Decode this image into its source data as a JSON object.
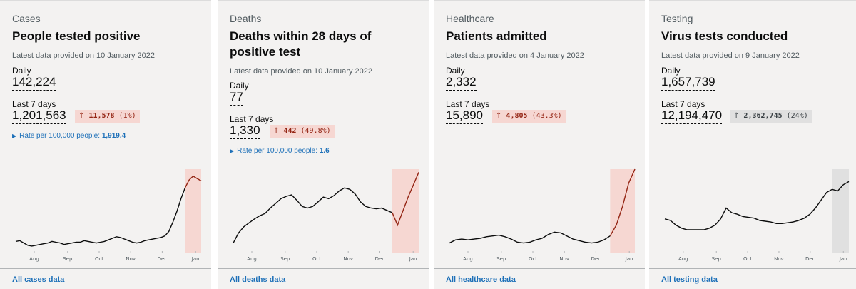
{
  "cards": [
    {
      "category": "Cases",
      "title": "People tested positive",
      "latest": "Latest data provided on 10 January 2022",
      "daily_label": "Daily",
      "daily_value": "142,224",
      "week_label": "Last 7 days",
      "week_value": "1,201,563",
      "change_arrow": "↑",
      "change_delta": "11,578",
      "change_pct": "(1%)",
      "change_color": "red",
      "rate_prefix": "Rate per 100,000 people:",
      "rate_value": "1,919.4",
      "link": "All cases data"
    },
    {
      "category": "Deaths",
      "title": "Deaths within 28 days of positive test",
      "latest": "Latest data provided on 10 January 2022",
      "daily_label": "Daily",
      "daily_value": "77",
      "week_label": "Last 7 days",
      "week_value": "1,330",
      "change_arrow": "↑",
      "change_delta": "442",
      "change_pct": "(49.8%)",
      "change_color": "red",
      "rate_prefix": "Rate per 100,000 people:",
      "rate_value": "1.6",
      "link": "All deaths data"
    },
    {
      "category": "Healthcare",
      "title": "Patients admitted",
      "latest": "Latest data provided on 4 January 2022",
      "daily_label": "Daily",
      "daily_value": "2,332",
      "week_label": "Last 7 days",
      "week_value": "15,890",
      "change_arrow": "↑",
      "change_delta": "4,805",
      "change_pct": "(43.3%)",
      "change_color": "red",
      "link": "All healthcare data"
    },
    {
      "category": "Testing",
      "title": "Virus tests conducted",
      "latest": "Latest data provided on 9 January 2022",
      "daily_label": "Daily",
      "daily_value": "1,657,739",
      "week_label": "Last 7 days",
      "week_value": "12,194,470",
      "change_arrow": "↑",
      "change_delta": "2,362,745",
      "change_pct": "(24%)",
      "change_color": "grey",
      "link": "All testing data"
    }
  ],
  "colors": {
    "card_bg": "#f3f2f1",
    "link": "#1d70b8",
    "line": "#0b0c0c",
    "recent_line_red": "#942514",
    "recent_fill_red": "#f6d7d2",
    "recent_fill_grey": "#e0e0e0"
  },
  "chart_data": [
    {
      "type": "line",
      "x_tick_labels": [
        "Aug",
        "Sep",
        "Oct",
        "Nov",
        "Dec",
        "Jan"
      ],
      "y_relative": [
        0.07,
        0.08,
        0.05,
        0.02,
        0.01,
        0.02,
        0.03,
        0.04,
        0.05,
        0.07,
        0.06,
        0.05,
        0.03,
        0.04,
        0.05,
        0.06,
        0.06,
        0.08,
        0.07,
        0.06,
        0.05,
        0.06,
        0.07,
        0.09,
        0.11,
        0.13,
        0.12,
        0.1,
        0.08,
        0.06,
        0.05,
        0.06,
        0.08,
        0.09,
        0.1,
        0.11,
        0.12,
        0.14,
        0.2,
        0.32,
        0.46,
        0.62,
        0.76,
        0.86,
        0.91,
        0.88,
        0.85
      ],
      "recent_points": 4,
      "recent_style": "red"
    },
    {
      "type": "line",
      "x_tick_labels": [
        "Aug",
        "Sep",
        "Oct",
        "Nov",
        "Dec",
        "Jan"
      ],
      "y_relative": [
        0.05,
        0.18,
        0.26,
        0.31,
        0.36,
        0.4,
        0.43,
        0.5,
        0.56,
        0.62,
        0.65,
        0.67,
        0.6,
        0.52,
        0.5,
        0.52,
        0.58,
        0.64,
        0.62,
        0.66,
        0.72,
        0.76,
        0.74,
        0.68,
        0.58,
        0.52,
        0.5,
        0.49,
        0.5,
        0.47,
        0.44,
        0.28,
        0.46,
        0.64,
        0.8,
        0.96
      ],
      "recent_points": 5,
      "recent_style": "red"
    },
    {
      "type": "line",
      "x_tick_labels": [
        "Aug",
        "Sep",
        "Oct",
        "Nov",
        "Dec",
        "Jan"
      ],
      "y_relative": [
        0.05,
        0.09,
        0.1,
        0.09,
        0.1,
        0.11,
        0.13,
        0.14,
        0.15,
        0.13,
        0.1,
        0.06,
        0.05,
        0.06,
        0.09,
        0.11,
        0.16,
        0.19,
        0.18,
        0.14,
        0.1,
        0.08,
        0.06,
        0.05,
        0.06,
        0.09,
        0.14,
        0.28,
        0.52,
        0.82,
        1.0
      ],
      "recent_points": 4,
      "recent_style": "red"
    },
    {
      "type": "line",
      "x_tick_labels": [
        "Aug",
        "Sep",
        "Oct",
        "Nov",
        "Dec",
        "Jan"
      ],
      "y_relative": [
        0.36,
        0.34,
        0.28,
        0.24,
        0.22,
        0.22,
        0.22,
        0.22,
        0.24,
        0.28,
        0.36,
        0.5,
        0.44,
        0.42,
        0.39,
        0.38,
        0.37,
        0.34,
        0.33,
        0.32,
        0.3,
        0.3,
        0.31,
        0.32,
        0.34,
        0.37,
        0.42,
        0.5,
        0.6,
        0.7,
        0.74,
        0.72,
        0.8,
        0.84
      ],
      "recent_points": 3,
      "recent_style": "grey"
    }
  ]
}
